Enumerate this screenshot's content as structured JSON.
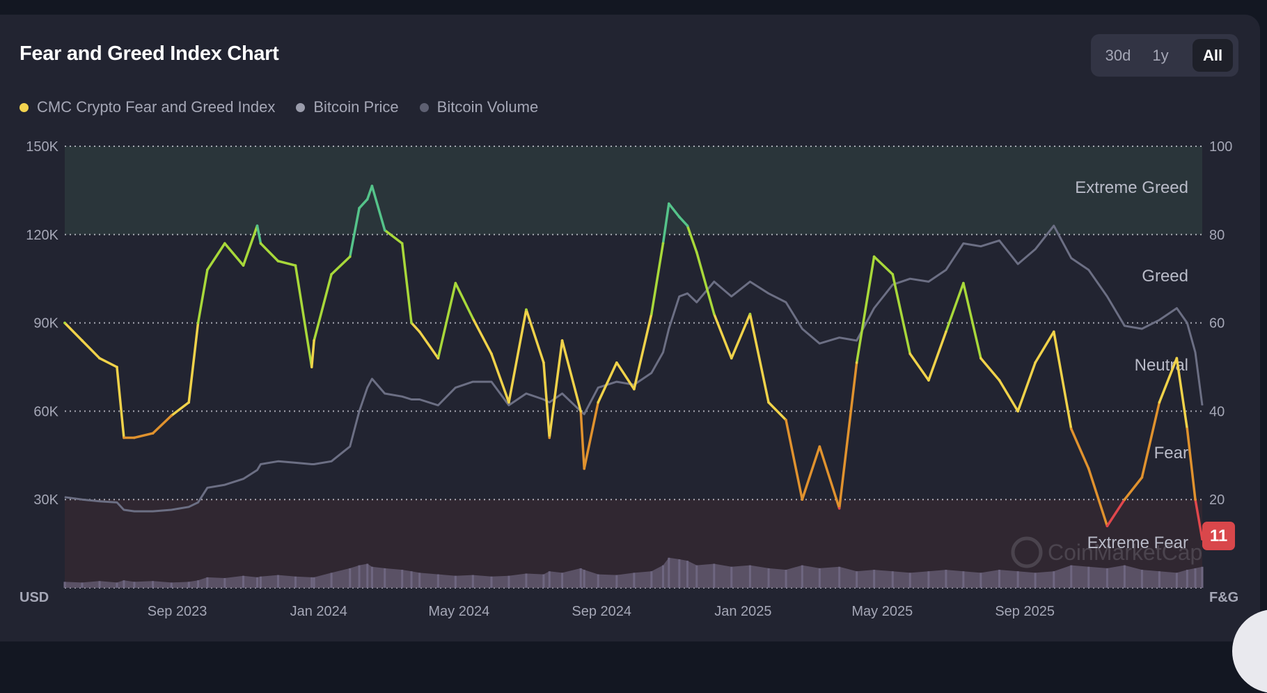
{
  "header": {
    "title": "Fear and Greed Index Chart"
  },
  "range_toggle": {
    "options": [
      "30d",
      "1y",
      "All"
    ],
    "selected": "All"
  },
  "legend": [
    {
      "label": "CMC Crypto Fear and Greed Index",
      "color": "#f2d34f"
    },
    {
      "label": "Bitcoin Price",
      "color": "#9a9cab"
    },
    {
      "label": "Bitcoin Volume",
      "color": "#5e6072"
    }
  ],
  "colors": {
    "extreme_fear": "#e0474c",
    "fear": "#e0922e",
    "neutral": "#f0d24a",
    "greed": "#a8d83a",
    "extreme_greed": "#55c38a",
    "price": "#6c6f84",
    "volume": "#5f566c"
  },
  "chart_data": {
    "type": "line",
    "title": "Fear and Greed Index Chart",
    "x_range": [
      "2023-05-27",
      "2026-02-01"
    ],
    "x_ticks": [
      {
        "label": "Sep 2023",
        "date": "2023-09-01"
      },
      {
        "label": "Jan 2024",
        "date": "2024-01-01"
      },
      {
        "label": "May 2024",
        "date": "2024-05-01"
      },
      {
        "label": "Sep 2024",
        "date": "2024-09-01"
      },
      {
        "label": "Jan 2025",
        "date": "2025-01-01"
      },
      {
        "label": "May 2025",
        "date": "2025-05-01"
      },
      {
        "label": "Sep 2025",
        "date": "2025-09-01"
      }
    ],
    "left_axis": {
      "unit_label": "USD",
      "range": [
        0,
        150000
      ],
      "ticks": [
        "30K",
        "60K",
        "90K",
        "120K",
        "150K"
      ],
      "tick_values": [
        30000,
        60000,
        90000,
        120000,
        150000
      ]
    },
    "right_axis": {
      "unit_label": "F&G",
      "range": [
        0,
        100
      ],
      "ticks": [
        "20",
        "40",
        "60",
        "80",
        "100"
      ],
      "tick_values": [
        20,
        40,
        60,
        80,
        100
      ]
    },
    "zones": [
      {
        "label": "Extreme Greed",
        "from": 80,
        "to": 100
      },
      {
        "label": "Greed",
        "from": 60,
        "to": 80
      },
      {
        "label": "Neutral",
        "from": 40,
        "to": 60
      },
      {
        "label": "Fear",
        "from": 20,
        "to": 40
      },
      {
        "label": "Extreme Fear",
        "from": 0,
        "to": 20
      }
    ],
    "current_value": "11",
    "watermark": "CoinMarketCap",
    "dates": [
      "2023-05-27",
      "2023-06-11",
      "2023-06-26",
      "2023-07-11",
      "2023-07-17",
      "2023-07-26",
      "2023-08-11",
      "2023-08-27",
      "2023-09-11",
      "2023-09-19",
      "2023-09-27",
      "2023-10-12",
      "2023-10-28",
      "2023-11-09",
      "2023-11-12",
      "2023-11-27",
      "2023-12-12",
      "2023-12-26",
      "2023-12-28",
      "2024-01-12",
      "2024-01-28",
      "2024-02-05",
      "2024-02-12",
      "2024-02-16",
      "2024-02-27",
      "2024-03-13",
      "2024-03-21",
      "2024-03-28",
      "2024-04-13",
      "2024-04-28",
      "2024-05-13",
      "2024-05-29",
      "2024-06-13",
      "2024-06-28",
      "2024-07-13",
      "2024-07-18",
      "2024-07-29",
      "2024-08-14",
      "2024-08-17",
      "2024-08-29",
      "2024-09-14",
      "2024-09-29",
      "2024-10-14",
      "2024-10-24",
      "2024-10-29",
      "2024-11-07",
      "2024-11-14",
      "2024-11-22",
      "2024-12-07",
      "2024-12-22",
      "2025-01-07",
      "2025-01-23",
      "2025-02-07",
      "2025-02-21",
      "2025-03-08",
      "2025-03-25",
      "2025-04-09",
      "2025-04-24",
      "2025-05-10",
      "2025-05-25",
      "2025-06-10",
      "2025-06-25",
      "2025-07-10",
      "2025-07-25",
      "2025-08-10",
      "2025-08-26",
      "2025-09-10",
      "2025-09-26",
      "2025-10-11",
      "2025-10-26",
      "2025-11-11",
      "2025-11-26",
      "2025-12-11",
      "2025-12-26",
      "2026-01-10",
      "2026-01-19",
      "2026-01-26",
      "2026-02-01"
    ],
    "series": [
      {
        "name": "CMC Crypto Fear and Greed Index",
        "axis": "right",
        "values": [
          60,
          56,
          52,
          50,
          34,
          34,
          35,
          39,
          42,
          60,
          72,
          78,
          73,
          82,
          78,
          74,
          73,
          50,
          56,
          71,
          75,
          86,
          88,
          91,
          81,
          78,
          60,
          58,
          52,
          69,
          61,
          53,
          42,
          63,
          51,
          34,
          56,
          40,
          27,
          42,
          51,
          45,
          62,
          78,
          87,
          84,
          82,
          76,
          62,
          52,
          62,
          42,
          38,
          20,
          32,
          18,
          51,
          75,
          71,
          53,
          47,
          58,
          69,
          52,
          47,
          40,
          51,
          58,
          36,
          27,
          14,
          20,
          25,
          42,
          52,
          36,
          20,
          11
        ]
      },
      {
        "name": "Bitcoin Price",
        "axis": "left",
        "values": [
          30800,
          30000,
          29400,
          29000,
          26500,
          26000,
          26000,
          26500,
          27500,
          29000,
          34000,
          35000,
          37000,
          40000,
          42000,
          43000,
          42500,
          42000,
          42000,
          43000,
          48000,
          60000,
          68000,
          71000,
          66000,
          65000,
          64000,
          64000,
          62000,
          68000,
          70000,
          70000,
          62000,
          66000,
          64000,
          63000,
          66000,
          60000,
          59000,
          68000,
          70000,
          69000,
          73000,
          80000,
          88000,
          99000,
          100000,
          97000,
          104000,
          99000,
          104000,
          100000,
          97000,
          88000,
          83000,
          85000,
          84000,
          95000,
          103000,
          105000,
          104000,
          108000,
          117000,
          116000,
          118000,
          110000,
          115000,
          123000,
          112000,
          108000,
          99000,
          89000,
          88000,
          91000,
          95000,
          90000,
          80000,
          62000
        ]
      },
      {
        "name": "Bitcoin Volume",
        "axis": "hidden",
        "unit": "billion USD (relative)",
        "values": [
          8,
          7,
          9,
          7,
          10,
          8,
          9,
          7,
          8,
          10,
          14,
          13,
          16,
          14,
          15,
          17,
          15,
          14,
          14,
          20,
          26,
          30,
          32,
          28,
          26,
          24,
          22,
          20,
          18,
          16,
          17,
          15,
          16,
          19,
          18,
          22,
          20,
          26,
          24,
          18,
          17,
          20,
          22,
          30,
          40,
          38,
          36,
          30,
          32,
          28,
          30,
          26,
          24,
          30,
          26,
          28,
          22,
          24,
          22,
          20,
          22,
          24,
          22,
          20,
          24,
          22,
          20,
          22,
          30,
          28,
          26,
          30,
          24,
          22,
          20,
          24,
          26,
          28
        ]
      }
    ]
  }
}
